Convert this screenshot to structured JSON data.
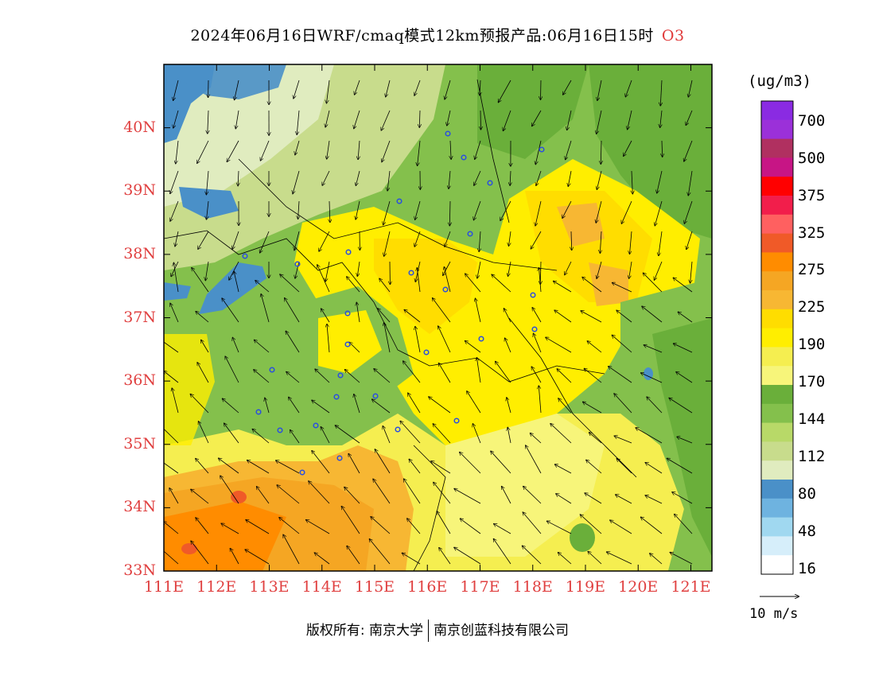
{
  "title": {
    "text": "2024年06月16日WRF/cmaq模式12km预报产品:06月16日15时",
    "pollutant": "O3"
  },
  "map": {
    "lat_labels": [
      "40N",
      "39N",
      "38N",
      "37N",
      "36N",
      "35N",
      "34N",
      "33N"
    ],
    "lon_labels": [
      "111E",
      "112E",
      "113E",
      "114E",
      "115E",
      "116E",
      "117E",
      "118E",
      "119E",
      "120E",
      "121E"
    ],
    "lat_range": [
      33,
      41
    ],
    "lon_range": [
      111,
      121.4
    ]
  },
  "legend": {
    "unit": "(ug/m3)",
    "labels": [
      "700",
      "500",
      "375",
      "325",
      "275",
      "225",
      "190",
      "170",
      "144",
      "112",
      "80",
      "48",
      "16"
    ],
    "colors": [
      "#8a2be2",
      "#9b30d9",
      "#b03060",
      "#c71585",
      "#ff0000",
      "#f21e4b",
      "#ff6060",
      "#f05a28",
      "#ff8c00",
      "#f5a623",
      "#f7b733",
      "#ffdd00",
      "#ffee00",
      "#f5ee50",
      "#f7f57a",
      "#6aaf3a",
      "#84c04c",
      "#b8d968",
      "#c8dc8c",
      "#e0ecbf",
      "#4a90c8",
      "#6eb3e0",
      "#a0d8f0",
      "#d6eefa",
      "#ffffff"
    ]
  },
  "vector_ref": "10 m/s",
  "footer": {
    "left": "版权所有: 南京大学",
    "right": "南京创蓝科技有限公司"
  }
}
